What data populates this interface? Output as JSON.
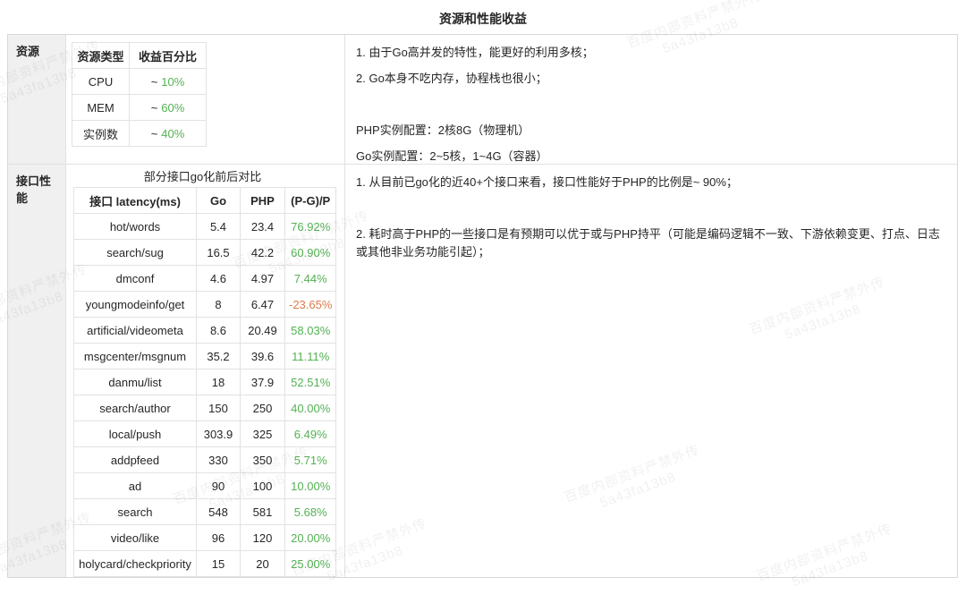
{
  "page": {
    "title": "资源和性能收益"
  },
  "watermark": {
    "line1": "百度内部资料严禁外传",
    "line2": "5a43fa13b8"
  },
  "colors": {
    "positive_green": "#53B153",
    "negative_orange": "#DC7A4C",
    "label_cell_bg": "#F0F0F0"
  },
  "resource_section": {
    "label": "资源",
    "table": {
      "headers": [
        "资源类型",
        "收益百分比"
      ],
      "rows": [
        {
          "type": "CPU",
          "approx": "~",
          "value": "10%"
        },
        {
          "type": "MEM",
          "approx": "~",
          "value": "60%"
        },
        {
          "type": "实例数",
          "approx": "~",
          "value": "40%"
        }
      ]
    },
    "notes": [
      "1. 由于Go高并发的特性，能更好的利用多核；",
      "2. Go本身不吃内存，协程栈也很小；",
      "",
      "PHP实例配置：2核8G（物理机）",
      "Go实例配置：2~5核，1~4G（容器）"
    ]
  },
  "perf_section": {
    "label": "接口性能",
    "table_title": "部分接口go化前后对比",
    "table": {
      "headers": [
        "接口 latency(ms)",
        "Go",
        "PHP",
        "(P-G)/P"
      ],
      "rows": [
        {
          "api": "hot/words",
          "go": "5.4",
          "php": "23.4",
          "diff": "76.92%"
        },
        {
          "api": "search/sug",
          "go": "16.5",
          "php": "42.2",
          "diff": "60.90%"
        },
        {
          "api": "dmconf",
          "go": "4.6",
          "php": "4.97",
          "diff": "7.44%"
        },
        {
          "api": "youngmodeinfo/get",
          "go": "8",
          "php": "6.47",
          "diff": "-23.65%"
        },
        {
          "api": "artificial/videometa",
          "go": "8.6",
          "php": "20.49",
          "diff": "58.03%"
        },
        {
          "api": "msgcenter/msgnum",
          "go": "35.2",
          "php": "39.6",
          "diff": "11.11%"
        },
        {
          "api": "danmu/list",
          "go": "18",
          "php": "37.9",
          "diff": "52.51%"
        },
        {
          "api": "search/author",
          "go": "150",
          "php": "250",
          "diff": "40.00%"
        },
        {
          "api": "local/push",
          "go": "303.9",
          "php": "325",
          "diff": "6.49%"
        },
        {
          "api": "addpfeed",
          "go": "330",
          "php": "350",
          "diff": "5.71%"
        },
        {
          "api": "ad",
          "go": "90",
          "php": "100",
          "diff": "10.00%"
        },
        {
          "api": "search",
          "go": "548",
          "php": "581",
          "diff": "5.68%"
        },
        {
          "api": "video/like",
          "go": "96",
          "php": "120",
          "diff": "20.00%"
        },
        {
          "api": "holycard/checkpriority",
          "go": "15",
          "php": "20",
          "diff": "25.00%"
        }
      ]
    },
    "notes": [
      "1. 从目前已go化的近40+个接口来看，接口性能好于PHP的比例是~ 90%；",
      "",
      "2. 耗时高于PHP的一些接口是有预期可以优于或与PHP持平（可能是编码逻辑不一致、下游依赖变更、打点、日志或其他非业务功能引起）；"
    ]
  }
}
